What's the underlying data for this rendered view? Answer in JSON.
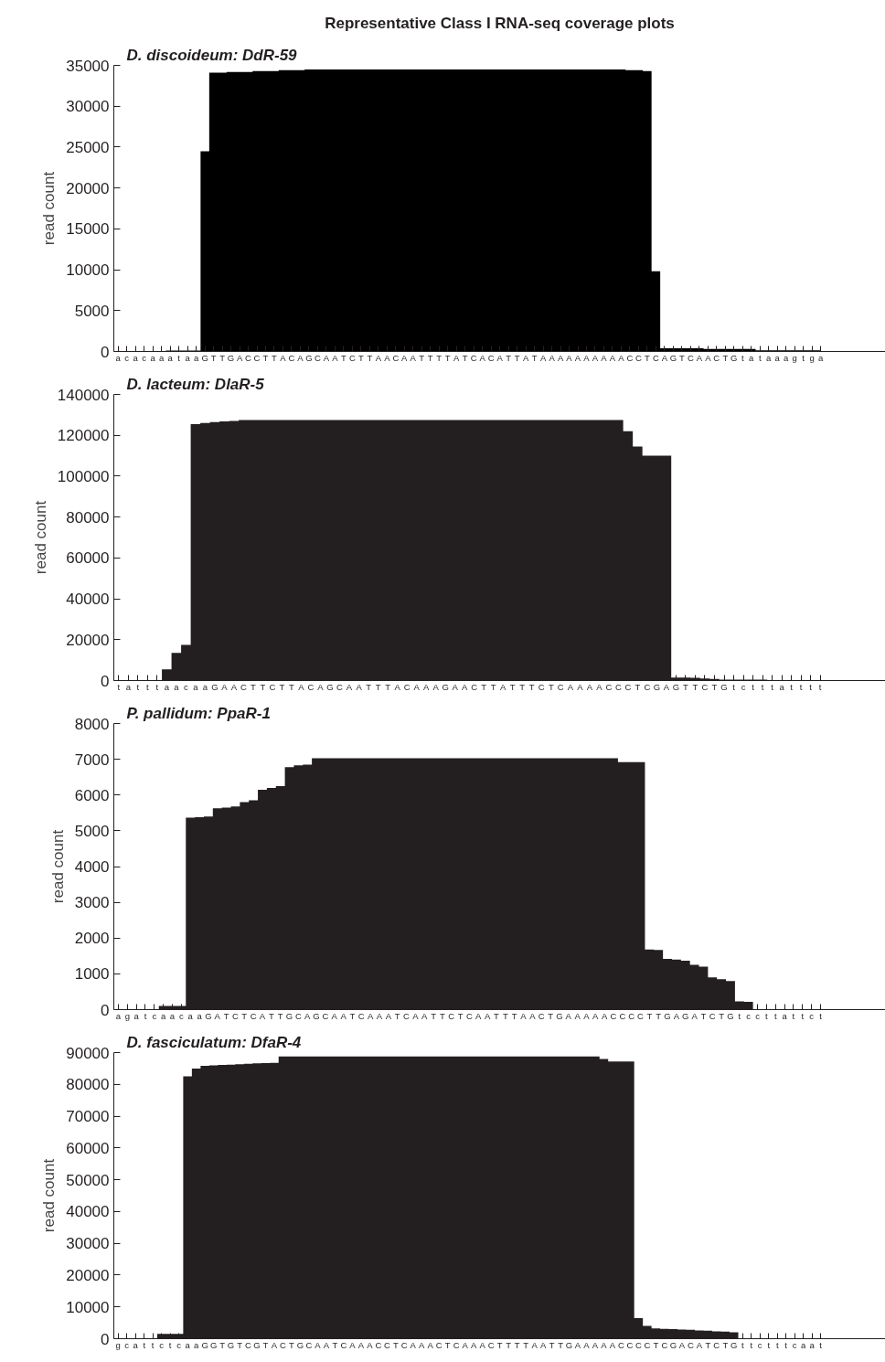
{
  "chart_data": [
    {
      "type": "other",
      "title": "Representative Class I RNA-seq coverage plots"
    },
    {
      "type": "area",
      "title": "D. discoideum: DdR-59",
      "ylabel": "read count",
      "color": "#000000",
      "ylim": [
        0,
        35000
      ],
      "yticks": [
        0,
        5000,
        10000,
        15000,
        20000,
        25000,
        30000,
        35000
      ],
      "grid": false,
      "categories": [
        "a",
        "c",
        "a",
        "c",
        "a",
        "a",
        "a",
        "t",
        "a",
        "a",
        "G",
        "T",
        "T",
        "G",
        "A",
        "C",
        "C",
        "T",
        "T",
        "A",
        "C",
        "A",
        "G",
        "C",
        "A",
        "A",
        "T",
        "C",
        "T",
        "T",
        "A",
        "A",
        "C",
        "A",
        "A",
        "T",
        "T",
        "T",
        "T",
        "A",
        "T",
        "C",
        "A",
        "C",
        "A",
        "T",
        "T",
        "A",
        "T",
        "A",
        "A",
        "A",
        "A",
        "A",
        "A",
        "A",
        "A",
        "A",
        "A",
        "C",
        "C",
        "T",
        "C",
        "A",
        "G",
        "T",
        "C",
        "A",
        "A",
        "C",
        "T",
        "G",
        "t",
        "a",
        "t",
        "a",
        "a",
        "a",
        "g",
        "t",
        "g",
        "a"
      ],
      "values": [
        0,
        0,
        0,
        0,
        0,
        0,
        100,
        100,
        100,
        100,
        24500,
        34100,
        34100,
        34200,
        34200,
        34200,
        34300,
        34300,
        34300,
        34400,
        34400,
        34400,
        34500,
        34500,
        34500,
        34500,
        34500,
        34500,
        34500,
        34500,
        34500,
        34500,
        34500,
        34500,
        34500,
        34500,
        34500,
        34500,
        34500,
        34500,
        34500,
        34500,
        34500,
        34500,
        34500,
        34500,
        34500,
        34500,
        34500,
        34500,
        34500,
        34500,
        34500,
        34500,
        34500,
        34500,
        34500,
        34500,
        34500,
        34400,
        34400,
        34300,
        9800,
        400,
        400,
        400,
        400,
        400,
        300,
        300,
        300,
        300,
        300,
        300,
        150,
        150,
        150,
        150,
        150,
        150,
        150,
        150
      ]
    },
    {
      "type": "area",
      "title": "D. lacteum: DlaR-5",
      "ylabel": "read count",
      "color": "#231f20",
      "ylim": [
        0,
        140000
      ],
      "yticks": [
        0,
        20000,
        40000,
        60000,
        80000,
        100000,
        120000,
        140000
      ],
      "grid": false,
      "categories": [
        "t",
        "a",
        "t",
        "t",
        "t",
        "a",
        "a",
        "c",
        "a",
        "a",
        "G",
        "A",
        "A",
        "C",
        "T",
        "T",
        "C",
        "T",
        "T",
        "A",
        "C",
        "A",
        "G",
        "C",
        "A",
        "A",
        "T",
        "T",
        "T",
        "A",
        "C",
        "A",
        "A",
        "A",
        "G",
        "A",
        "A",
        "C",
        "T",
        "T",
        "A",
        "T",
        "T",
        "T",
        "C",
        "T",
        "C",
        "A",
        "A",
        "A",
        "A",
        "C",
        "C",
        "C",
        "T",
        "C",
        "G",
        "A",
        "G",
        "T",
        "T",
        "C",
        "T",
        "G",
        "t",
        "c",
        "t",
        "t",
        "t",
        "a",
        "t",
        "t",
        "t",
        "t"
      ],
      "values": [
        0,
        0,
        0,
        0,
        0,
        5500,
        13500,
        17500,
        125500,
        126000,
        126500,
        126800,
        127000,
        127500,
        127500,
        127500,
        127500,
        127500,
        127500,
        127500,
        127500,
        127500,
        127500,
        127500,
        127500,
        127500,
        127500,
        127500,
        127500,
        127500,
        127500,
        127500,
        127500,
        127500,
        127500,
        127500,
        127500,
        127500,
        127500,
        127500,
        127500,
        127500,
        127500,
        127500,
        127500,
        127500,
        127500,
        127500,
        127500,
        127500,
        127500,
        127500,
        127500,
        122000,
        114500,
        110000,
        110000,
        110000,
        1500,
        1400,
        1300,
        1000,
        800,
        500,
        500,
        500,
        500,
        500,
        200,
        200,
        200,
        200,
        200,
        200
      ]
    },
    {
      "type": "area",
      "title": "P. pallidum: PpaR-1",
      "ylabel": "read count",
      "color": "#231f20",
      "ylim": [
        0,
        8000
      ],
      "yticks": [
        0,
        1000,
        2000,
        3000,
        4000,
        5000,
        6000,
        7000,
        8000
      ],
      "grid": false,
      "categories": [
        "a",
        "g",
        "a",
        "t",
        "c",
        "a",
        "a",
        "c",
        "a",
        "a",
        "G",
        "A",
        "T",
        "C",
        "T",
        "C",
        "A",
        "T",
        "T",
        "G",
        "C",
        "A",
        "G",
        "C",
        "A",
        "A",
        "T",
        "C",
        "A",
        "A",
        "A",
        "T",
        "C",
        "A",
        "A",
        "T",
        "T",
        "C",
        "T",
        "C",
        "A",
        "A",
        "T",
        "T",
        "T",
        "A",
        "A",
        "C",
        "T",
        "G",
        "A",
        "A",
        "A",
        "A",
        "A",
        "C",
        "C",
        "C",
        "C",
        "T",
        "T",
        "G",
        "A",
        "G",
        "A",
        "T",
        "C",
        "T",
        "G",
        "t",
        "c",
        "c",
        "t",
        "t",
        "a",
        "t",
        "t",
        "c",
        "t"
      ],
      "values": [
        0,
        0,
        0,
        0,
        0,
        100,
        100,
        100,
        5370,
        5380,
        5400,
        5630,
        5650,
        5680,
        5800,
        5850,
        6150,
        6200,
        6250,
        6780,
        6830,
        6850,
        7030,
        7030,
        7030,
        7030,
        7030,
        7030,
        7030,
        7030,
        7030,
        7030,
        7030,
        7030,
        7030,
        7030,
        7030,
        7030,
        7030,
        7030,
        7030,
        7030,
        7030,
        7030,
        7030,
        7030,
        7030,
        7030,
        7030,
        7030,
        7030,
        7030,
        7030,
        7030,
        7030,
        7030,
        6920,
        6920,
        6920,
        1680,
        1670,
        1420,
        1400,
        1370,
        1250,
        1200,
        900,
        850,
        800,
        230,
        220,
        0,
        0,
        0,
        0,
        0,
        0,
        0,
        0
      ]
    },
    {
      "type": "area",
      "title": "D. fasciculatum: DfaR-4",
      "ylabel": "read count",
      "color": "#231f20",
      "ylim": [
        0,
        90000
      ],
      "yticks": [
        0,
        10000,
        20000,
        30000,
        40000,
        50000,
        60000,
        70000,
        80000,
        90000
      ],
      "grid": false,
      "categories": [
        "g",
        "c",
        "a",
        "t",
        "t",
        "c",
        "t",
        "c",
        "a",
        "a",
        "G",
        "G",
        "T",
        "G",
        "T",
        "C",
        "G",
        "T",
        "A",
        "C",
        "T",
        "G",
        "C",
        "A",
        "A",
        "T",
        "C",
        "A",
        "A",
        "A",
        "C",
        "C",
        "T",
        "C",
        "A",
        "A",
        "A",
        "C",
        "T",
        "C",
        "A",
        "A",
        "A",
        "C",
        "T",
        "T",
        "T",
        "T",
        "A",
        "A",
        "T",
        "T",
        "G",
        "A",
        "A",
        "A",
        "A",
        "A",
        "C",
        "C",
        "C",
        "C",
        "T",
        "C",
        "G",
        "A",
        "C",
        "A",
        "T",
        "C",
        "T",
        "G",
        "t",
        "t",
        "c",
        "t",
        "t",
        "t",
        "c",
        "a",
        "a",
        "t"
      ],
      "values": [
        0,
        0,
        0,
        0,
        0,
        1500,
        1500,
        1500,
        82500,
        85000,
        85800,
        86000,
        86100,
        86200,
        86300,
        86500,
        86600,
        86700,
        86800,
        88800,
        88800,
        88800,
        88800,
        88800,
        88800,
        88800,
        88800,
        88800,
        88800,
        88800,
        88800,
        88800,
        88800,
        88800,
        88800,
        88800,
        88800,
        88800,
        88800,
        88800,
        88800,
        88800,
        88800,
        88800,
        88800,
        88800,
        88800,
        88800,
        88800,
        88800,
        88800,
        88800,
        88800,
        88800,
        88800,
        88800,
        88000,
        87200,
        87200,
        87200,
        6500,
        4000,
        3200,
        3100,
        3000,
        2900,
        2800,
        2600,
        2500,
        2300,
        2200,
        2000,
        0,
        0,
        0,
        0,
        0,
        0,
        0,
        0,
        0,
        0
      ]
    }
  ]
}
